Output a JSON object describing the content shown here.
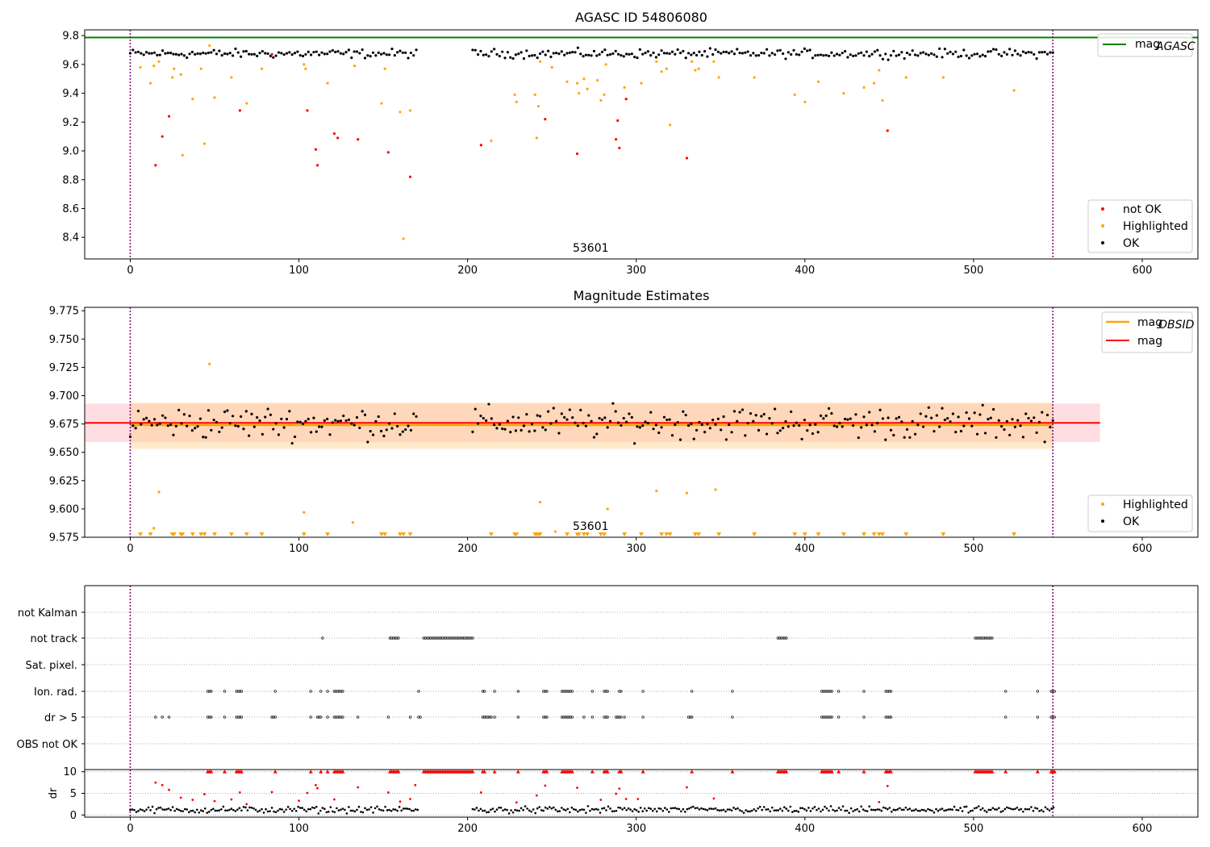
{
  "colors": {
    "ok": "#000000",
    "not_ok": "#ff0000",
    "highlighted": "#ffa500",
    "agasc_line": "#008000",
    "mag_line": "#ff0000",
    "mag_obsid_line": "#ffa500",
    "marker_vline": "#800080"
  },
  "chart_data": [
    {
      "type": "scatter",
      "title": "AGASC ID 54806080",
      "xlim": [
        -27,
        633
      ],
      "ylim": [
        8.25,
        9.84
      ],
      "xticks": [
        0,
        100,
        200,
        300,
        400,
        500,
        600
      ],
      "yticks": [
        8.4,
        8.6,
        8.8,
        9.0,
        9.2,
        9.4,
        9.6,
        9.8
      ],
      "ytick_labels": [
        "8.4",
        "8.6",
        "8.8",
        "9.0",
        "9.2",
        "9.4",
        "9.6",
        "9.8"
      ],
      "vlines": [
        0,
        547
      ],
      "annotation": {
        "text": "53601",
        "x": 273
      },
      "reference_line": {
        "label": "mag",
        "sub": "AGASC",
        "value": 9.787
      },
      "series": [
        {
          "name": "not OK",
          "points": [
            [
              15,
              8.9
            ],
            [
              19,
              9.1
            ],
            [
              23,
              9.24
            ],
            [
              65,
              9.28
            ],
            [
              84,
              9.67
            ],
            [
              105,
              9.28
            ],
            [
              110,
              9.01
            ],
            [
              111,
              8.9
            ],
            [
              121,
              9.12
            ],
            [
              123,
              9.09
            ],
            [
              135,
              9.08
            ],
            [
              153,
              8.99
            ],
            [
              166,
              8.82
            ],
            [
              208,
              9.04
            ],
            [
              246,
              9.22
            ],
            [
              265,
              8.98
            ],
            [
              288,
              9.08
            ],
            [
              289,
              9.21
            ],
            [
              290,
              9.02
            ],
            [
              294,
              9.36
            ],
            [
              330,
              8.95
            ],
            [
              449,
              9.14
            ]
          ]
        },
        {
          "name": "Highlighted",
          "points": [
            [
              6,
              9.58
            ],
            [
              12,
              9.47
            ],
            [
              14,
              9.59
            ],
            [
              17,
              9.62
            ],
            [
              25,
              9.51
            ],
            [
              26,
              9.57
            ],
            [
              30,
              9.53
            ],
            [
              31,
              8.97
            ],
            [
              37,
              9.36
            ],
            [
              42,
              9.57
            ],
            [
              44,
              9.05
            ],
            [
              47,
              9.73
            ],
            [
              50,
              9.37
            ],
            [
              60,
              9.51
            ],
            [
              69,
              9.33
            ],
            [
              78,
              9.57
            ],
            [
              103,
              9.6
            ],
            [
              104,
              9.57
            ],
            [
              117,
              9.47
            ],
            [
              133,
              9.59
            ],
            [
              149,
              9.33
            ],
            [
              151,
              9.57
            ],
            [
              160,
              9.27
            ],
            [
              162,
              8.39
            ],
            [
              166,
              9.28
            ],
            [
              214,
              9.07
            ],
            [
              228,
              9.39
            ],
            [
              229,
              9.34
            ],
            [
              240,
              9.39
            ],
            [
              241,
              9.09
            ],
            [
              242,
              9.31
            ],
            [
              243,
              9.62
            ],
            [
              250,
              9.58
            ],
            [
              259,
              9.48
            ],
            [
              265,
              9.47
            ],
            [
              266,
              9.4
            ],
            [
              269,
              9.5
            ],
            [
              271,
              9.43
            ],
            [
              277,
              9.49
            ],
            [
              279,
              9.35
            ],
            [
              281,
              9.39
            ],
            [
              282,
              9.6
            ],
            [
              293,
              9.44
            ],
            [
              303,
              9.47
            ],
            [
              312,
              9.62
            ],
            [
              315,
              9.55
            ],
            [
              318,
              9.57
            ],
            [
              320,
              9.18
            ],
            [
              333,
              9.62
            ],
            [
              335,
              9.56
            ],
            [
              337,
              9.57
            ],
            [
              346,
              9.62
            ],
            [
              349,
              9.51
            ],
            [
              370,
              9.51
            ],
            [
              394,
              9.39
            ],
            [
              400,
              9.34
            ],
            [
              408,
              9.48
            ],
            [
              423,
              9.4
            ],
            [
              435,
              9.44
            ],
            [
              441,
              9.47
            ],
            [
              444,
              9.56
            ],
            [
              446,
              9.35
            ],
            [
              460,
              9.51
            ],
            [
              482,
              9.51
            ],
            [
              524,
              9.42
            ]
          ]
        },
        {
          "name": "OK",
          "band": {
            "x_ranges": [
              [
                0,
                171
              ],
              [
                203,
                548
              ]
            ],
            "mean": 9.675,
            "spread": 0.03,
            "step": 1.6
          }
        }
      ],
      "legend": {
        "entries": [
          "not OK",
          "Highlighted",
          "OK"
        ],
        "placement": "lower-right"
      },
      "top_legend": {
        "placement": "upper-right"
      }
    },
    {
      "type": "scatter",
      "title": "Magnitude Estimates",
      "xlim": [
        -27,
        633
      ],
      "ylim": [
        9.575,
        9.778
      ],
      "xticks": [
        0,
        100,
        200,
        300,
        400,
        500,
        600
      ],
      "yticks": [
        9.575,
        9.6,
        9.625,
        9.65,
        9.675,
        9.7,
        9.725,
        9.75,
        9.775
      ],
      "ytick_labels": [
        "9.575",
        "9.600",
        "9.625",
        "9.650",
        "9.675",
        "9.700",
        "9.725",
        "9.750",
        "9.775"
      ],
      "vlines": [
        0,
        547
      ],
      "annotation": {
        "text": "53601",
        "x": 273
      },
      "mag": {
        "label": "mag",
        "value": 9.676,
        "band": [
          9.659,
          9.693
        ],
        "x_range": [
          -27,
          575
        ]
      },
      "mag_obsid": {
        "label": "mag",
        "sub": "OBSID",
        "value": 9.674,
        "band": [
          9.653,
          9.694
        ],
        "x_range": [
          0,
          547
        ]
      },
      "series": [
        {
          "name": "Highlighted",
          "points": [
            [
              17,
              9.615
            ],
            [
              14,
              9.583
            ],
            [
              47,
              9.728
            ],
            [
              103,
              9.597
            ],
            [
              132,
              9.588
            ],
            [
              243,
              9.606
            ],
            [
              252,
              9.58
            ],
            [
              283,
              9.6
            ],
            [
              312,
              9.616
            ],
            [
              330,
              9.614
            ],
            [
              347,
              9.617
            ]
          ]
        },
        {
          "name": "OK",
          "band": {
            "x_ranges": [
              [
                0,
                171
              ],
              [
                203,
                548
              ]
            ],
            "mean": 9.676,
            "spread": 0.014,
            "step": 1.6
          }
        }
      ],
      "clipped_markers": [
        6,
        12,
        25,
        26,
        30,
        31,
        37,
        42,
        44,
        50,
        60,
        69,
        78,
        103,
        117,
        149,
        151,
        160,
        162,
        166,
        214,
        228,
        229,
        240,
        241,
        242,
        243,
        259,
        265,
        266,
        269,
        271,
        279,
        281,
        293,
        303,
        315,
        318,
        320,
        335,
        337,
        349,
        370,
        394,
        400,
        408,
        423,
        435,
        441,
        444,
        446,
        460,
        482,
        524
      ],
      "legend": {
        "entries": [
          "Highlighted",
          "OK"
        ],
        "placement": "lower-right"
      },
      "top_legend": {
        "placement": "upper-right"
      }
    },
    {
      "type": "scatter",
      "title": "",
      "xlim": [
        -27,
        633
      ],
      "categories": [
        "not Kalman",
        "not track",
        "Sat. pixel.",
        "Ion. rad.",
        "dr > 5",
        "OBS not OK"
      ],
      "vlines": [
        0,
        547
      ],
      "flags": {
        "not Kalman": [],
        "not track": [
          [
            114,
            114
          ],
          [
            154,
            159
          ],
          [
            174,
            203
          ],
          [
            384,
            389
          ],
          [
            501,
            511
          ]
        ],
        "Sat. pixel.": [],
        "Ion. rad.": [
          [
            46,
            48
          ],
          [
            56,
            56
          ],
          [
            63,
            66
          ],
          [
            86,
            86
          ],
          [
            107,
            107
          ],
          [
            113,
            113
          ],
          [
            117,
            117
          ],
          [
            121,
            126
          ],
          [
            171,
            171
          ],
          [
            209,
            210
          ],
          [
            216,
            216
          ],
          [
            230,
            230
          ],
          [
            245,
            247
          ],
          [
            256,
            262
          ],
          [
            274,
            274
          ],
          [
            281,
            283
          ],
          [
            290,
            291
          ],
          [
            304,
            304
          ],
          [
            333,
            333
          ],
          [
            357,
            357
          ],
          [
            410,
            416
          ],
          [
            420,
            420
          ],
          [
            435,
            435
          ],
          [
            448,
            451
          ],
          [
            519,
            519
          ],
          [
            538,
            538
          ],
          [
            546,
            548
          ]
        ],
        "dr > 5": [
          [
            15,
            15
          ],
          [
            19,
            19
          ],
          [
            23,
            23
          ],
          [
            46,
            48
          ],
          [
            56,
            56
          ],
          [
            63,
            66
          ],
          [
            84,
            86
          ],
          [
            107,
            107
          ],
          [
            111,
            113
          ],
          [
            117,
            117
          ],
          [
            121,
            126
          ],
          [
            135,
            135
          ],
          [
            153,
            153
          ],
          [
            166,
            166
          ],
          [
            171,
            172
          ],
          [
            209,
            214
          ],
          [
            216,
            216
          ],
          [
            230,
            230
          ],
          [
            245,
            247
          ],
          [
            256,
            262
          ],
          [
            269,
            269
          ],
          [
            274,
            274
          ],
          [
            281,
            283
          ],
          [
            288,
            291
          ],
          [
            293,
            293
          ],
          [
            304,
            304
          ],
          [
            331,
            333
          ],
          [
            357,
            357
          ],
          [
            410,
            416
          ],
          [
            420,
            420
          ],
          [
            435,
            435
          ],
          [
            448,
            451
          ],
          [
            519,
            519
          ],
          [
            538,
            538
          ],
          [
            546,
            548
          ]
        ],
        "OBS not OK": []
      }
    },
    {
      "type": "scatter",
      "title": "",
      "ylabel": "dr",
      "xlim": [
        -27,
        633
      ],
      "ylim": [
        -0.5,
        10.5
      ],
      "yticks": [
        0,
        5,
        10
      ],
      "xticks": [
        0,
        100,
        200,
        300,
        400,
        500,
        600
      ],
      "vlines": [
        0,
        547
      ],
      "capped_value": 10,
      "capped_x": [
        [
          46,
          48
        ],
        [
          56,
          56
        ],
        [
          63,
          66
        ],
        [
          86,
          86
        ],
        [
          107,
          107
        ],
        [
          113,
          113
        ],
        [
          117,
          117
        ],
        [
          121,
          126
        ],
        [
          154,
          159
        ],
        [
          174,
          203
        ],
        [
          209,
          210
        ],
        [
          216,
          216
        ],
        [
          230,
          230
        ],
        [
          245,
          247
        ],
        [
          256,
          262
        ],
        [
          274,
          274
        ],
        [
          281,
          283
        ],
        [
          290,
          291
        ],
        [
          304,
          304
        ],
        [
          333,
          333
        ],
        [
          357,
          357
        ],
        [
          384,
          389
        ],
        [
          410,
          416
        ],
        [
          420,
          420
        ],
        [
          435,
          435
        ],
        [
          448,
          451
        ],
        [
          501,
          511
        ],
        [
          519,
          519
        ],
        [
          538,
          538
        ],
        [
          546,
          548
        ]
      ],
      "outliers": [
        [
          15,
          7.5
        ],
        [
          19,
          6.9
        ],
        [
          23,
          5.8
        ],
        [
          30,
          4.0
        ],
        [
          37,
          3.5
        ],
        [
          44,
          4.8
        ],
        [
          50,
          3.2
        ],
        [
          60,
          3.6
        ],
        [
          65,
          5.2
        ],
        [
          69,
          2.5
        ],
        [
          84,
          5.3
        ],
        [
          100,
          3.3
        ],
        [
          105,
          5.1
        ],
        [
          110,
          6.9
        ],
        [
          111,
          6.2
        ],
        [
          121,
          3.6
        ],
        [
          135,
          6.4
        ],
        [
          153,
          5.2
        ],
        [
          160,
          3.1
        ],
        [
          166,
          3.7
        ],
        [
          169,
          6.9
        ],
        [
          208,
          5.2
        ],
        [
          229,
          2.9
        ],
        [
          241,
          4.5
        ],
        [
          246,
          6.8
        ],
        [
          265,
          6.3
        ],
        [
          279,
          3.5
        ],
        [
          288,
          4.9
        ],
        [
          290,
          6.1
        ],
        [
          294,
          3.7
        ],
        [
          301,
          3.7
        ],
        [
          330,
          6.4
        ],
        [
          346,
          3.8
        ],
        [
          449,
          6.7
        ],
        [
          444,
          3.0
        ]
      ],
      "ok_band": {
        "x_ranges": [
          [
            0,
            171
          ],
          [
            203,
            548
          ]
        ],
        "mean": 1.2,
        "spread": 0.9
      }
    }
  ]
}
